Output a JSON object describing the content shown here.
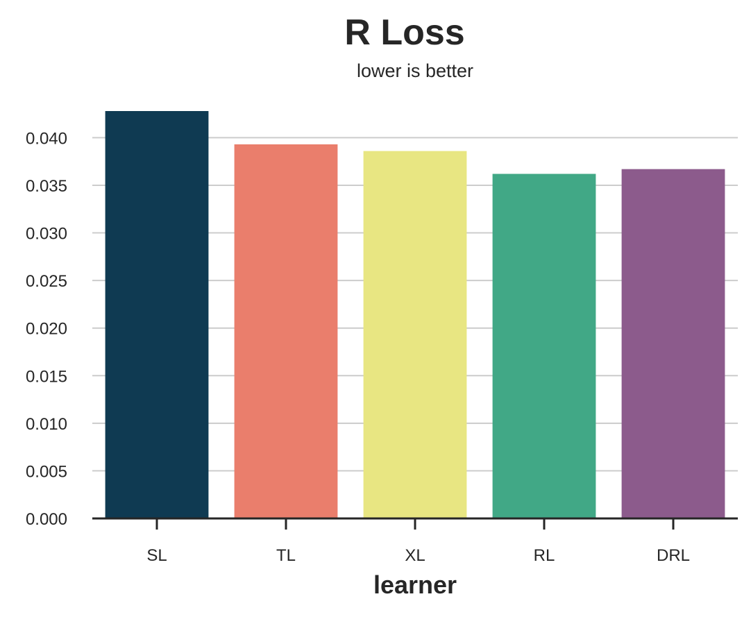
{
  "chart_data": {
    "type": "bar",
    "title": "R Loss",
    "subtitle": "lower is better",
    "xlabel": "learner",
    "ylabel": "",
    "categories": [
      "SL",
      "TL",
      "XL",
      "RL",
      "DRL"
    ],
    "values": [
      0.0428,
      0.0393,
      0.0386,
      0.0362,
      0.0367
    ],
    "colors": [
      "#0f3a52",
      "#ea7e6c",
      "#e8e682",
      "#41a886",
      "#8c5b8c"
    ],
    "ylim": [
      0,
      0.0428
    ],
    "yticks": [
      "0.000",
      "0.005",
      "0.010",
      "0.015",
      "0.020",
      "0.025",
      "0.030",
      "0.035",
      "0.040"
    ],
    "ytick_values": [
      0,
      0.005,
      0.01,
      0.015,
      0.02,
      0.025,
      0.03,
      0.035,
      0.04
    ],
    "grid": "horizontal",
    "legend": "none"
  }
}
